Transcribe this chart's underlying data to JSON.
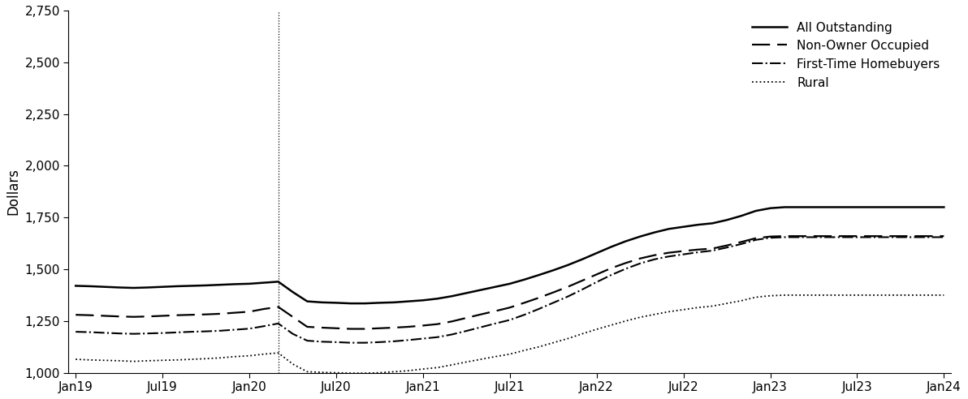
{
  "ylabel": "Dollars",
  "ylim": [
    1000,
    2750
  ],
  "yticks": [
    1000,
    1250,
    1500,
    1750,
    2000,
    2250,
    2500,
    2750
  ],
  "xtick_labels": [
    "Jan19",
    "Jul19",
    "Jan20",
    "Jul20",
    "Jan21",
    "Jul21",
    "Jan22",
    "Jul22",
    "Jan23",
    "Jul23",
    "Jan24"
  ],
  "vline_x": 14,
  "background_color": "#ffffff",
  "line_color": "#000000",
  "legend_entries": [
    "All Outstanding",
    "Non-Owner Occupied",
    "First-Time Homebuyers",
    "Rural"
  ],
  "series": {
    "all_outstanding": [
      1420,
      1418,
      1415,
      1412,
      1410,
      1412,
      1415,
      1418,
      1420,
      1422,
      1425,
      1428,
      1430,
      1435,
      1440,
      1390,
      1345,
      1340,
      1338,
      1335,
      1335,
      1338,
      1340,
      1345,
      1350,
      1358,
      1370,
      1385,
      1400,
      1415,
      1430,
      1450,
      1472,
      1495,
      1520,
      1548,
      1578,
      1608,
      1635,
      1658,
      1678,
      1695,
      1705,
      1715,
      1722,
      1738,
      1758,
      1782,
      1795,
      1800,
      1800,
      1800,
      1800,
      1800,
      1800,
      1800,
      1800,
      1800,
      1800,
      1800,
      1800
    ],
    "non_owner_occupied": [
      1280,
      1278,
      1275,
      1272,
      1270,
      1272,
      1275,
      1278,
      1280,
      1282,
      1285,
      1290,
      1295,
      1308,
      1318,
      1270,
      1222,
      1218,
      1215,
      1212,
      1212,
      1215,
      1218,
      1222,
      1228,
      1235,
      1248,
      1265,
      1282,
      1298,
      1315,
      1338,
      1362,
      1388,
      1415,
      1445,
      1475,
      1505,
      1530,
      1552,
      1568,
      1580,
      1588,
      1595,
      1600,
      1615,
      1632,
      1650,
      1658,
      1660,
      1660,
      1660,
      1660,
      1660,
      1660,
      1660,
      1660,
      1660,
      1660,
      1660,
      1660
    ],
    "first_time": [
      1198,
      1196,
      1193,
      1190,
      1188,
      1190,
      1192,
      1195,
      1198,
      1200,
      1203,
      1208,
      1213,
      1225,
      1238,
      1188,
      1155,
      1150,
      1148,
      1145,
      1145,
      1148,
      1152,
      1158,
      1165,
      1172,
      1185,
      1202,
      1220,
      1238,
      1255,
      1280,
      1308,
      1338,
      1368,
      1402,
      1438,
      1472,
      1502,
      1528,
      1548,
      1562,
      1572,
      1582,
      1590,
      1605,
      1622,
      1642,
      1652,
      1655,
      1655,
      1655,
      1655,
      1655,
      1655,
      1655,
      1655,
      1655,
      1655,
      1655,
      1655
    ],
    "rural": [
      1065,
      1062,
      1060,
      1058,
      1055,
      1058,
      1060,
      1062,
      1065,
      1068,
      1072,
      1078,
      1082,
      1090,
      1096,
      1042,
      1005,
      1002,
      1000,
      998,
      998,
      1000,
      1005,
      1010,
      1018,
      1025,
      1038,
      1052,
      1065,
      1078,
      1090,
      1108,
      1125,
      1145,
      1165,
      1188,
      1210,
      1230,
      1250,
      1268,
      1282,
      1295,
      1305,
      1315,
      1322,
      1335,
      1348,
      1365,
      1372,
      1375,
      1375,
      1375,
      1375,
      1375,
      1375,
      1375,
      1375,
      1375,
      1375,
      1375,
      1375
    ]
  }
}
